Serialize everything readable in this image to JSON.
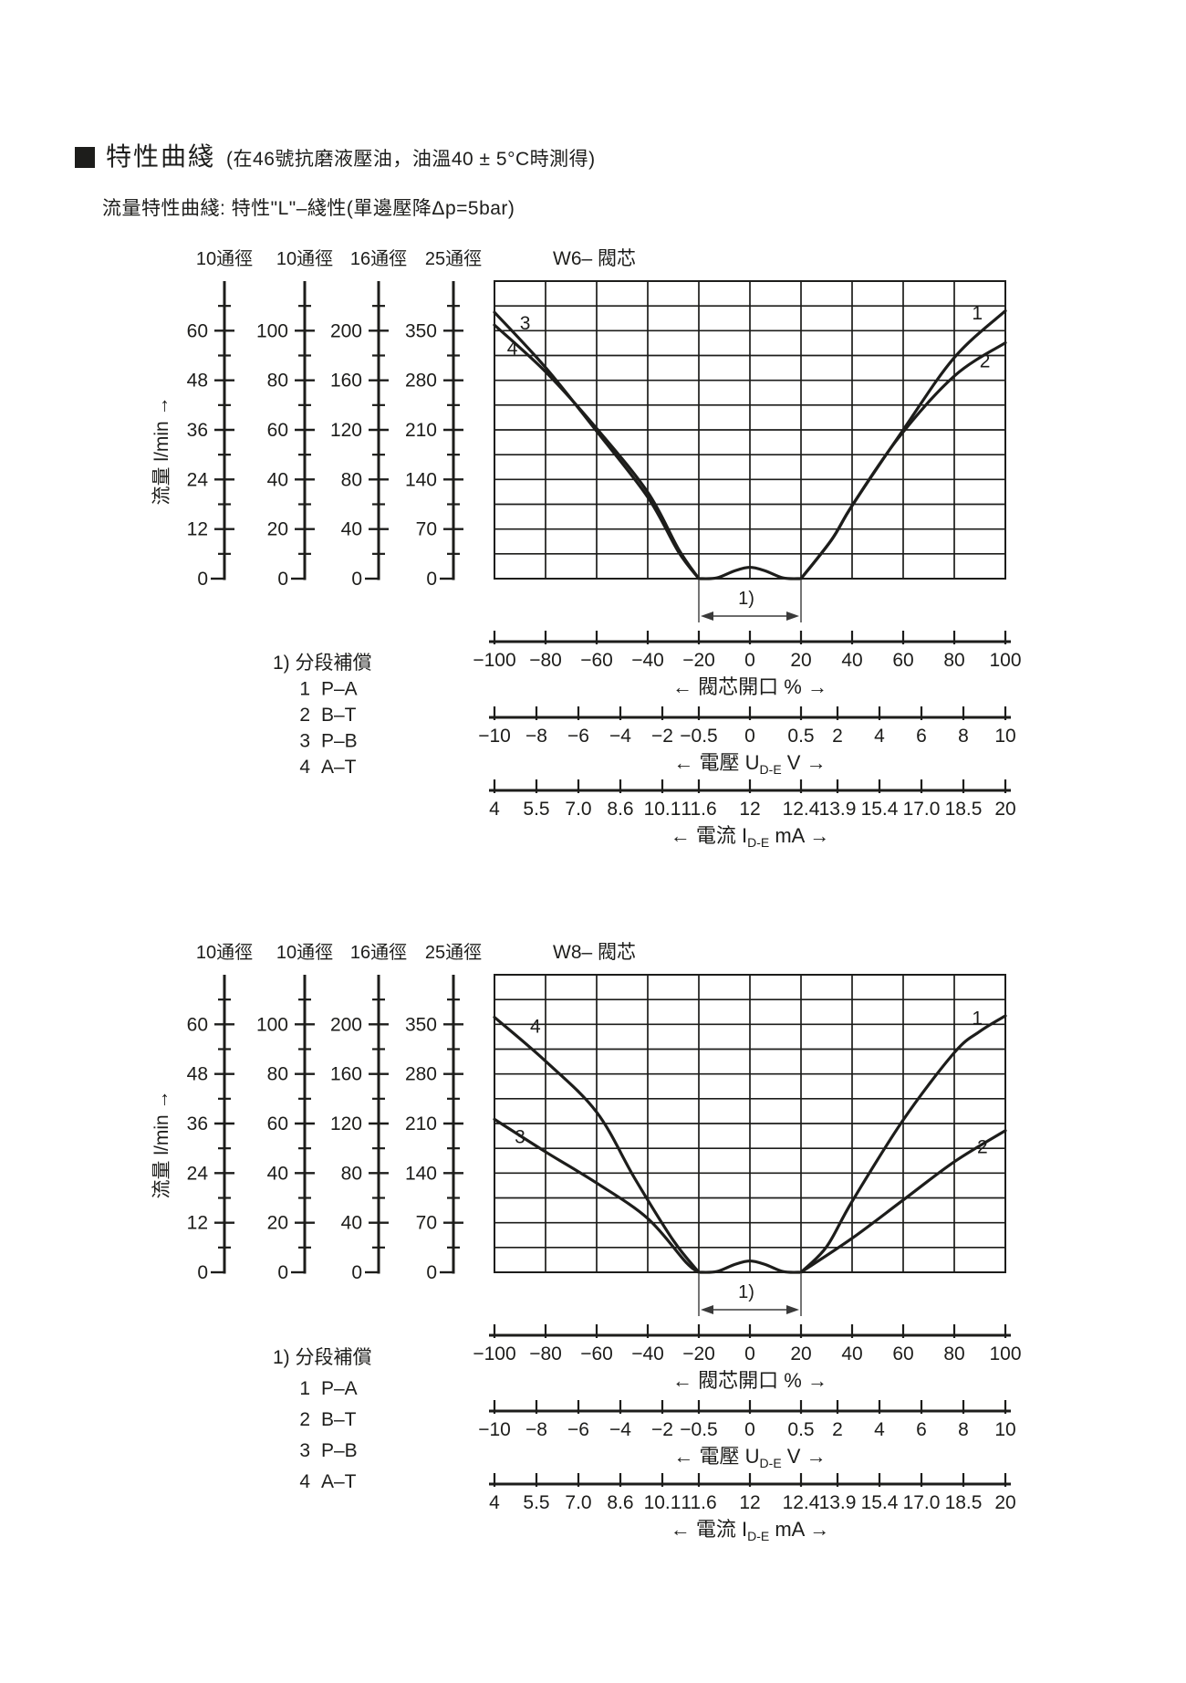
{
  "page": {
    "bg": "#ffffff",
    "ink": "#1d1d1b",
    "annotation_color": "#3a3a3a",
    "title_square_icon": "black-square",
    "title": "特性曲綫",
    "title_note": "(在46號抗磨液壓油，油溫40 ± 5°C時測得)",
    "subtitle": "流量特性曲綫: 特性\"L\"–綫性(單邊壓降Δp=5bar)"
  },
  "legend": {
    "heading": "1) 分段補償",
    "items": [
      {
        "num": "1",
        "label": "P–A"
      },
      {
        "num": "2",
        "label": "B–T"
      },
      {
        "num": "3",
        "label": "P–B"
      },
      {
        "num": "4",
        "label": "A–T"
      }
    ]
  },
  "flow_axis_label": "流量 l/min →",
  "deadband_label": "1)",
  "scales": [
    {
      "header": "10通徑",
      "ticks": [
        "0",
        "12",
        "24",
        "36",
        "48",
        "60"
      ]
    },
    {
      "header": "10通徑",
      "ticks": [
        "0",
        "20",
        "40",
        "60",
        "80",
        "100"
      ]
    },
    {
      "header": "16通徑",
      "ticks": [
        "0",
        "40",
        "80",
        "120",
        "160",
        "200"
      ]
    },
    {
      "header": "25通徑",
      "ticks": [
        "0",
        "70",
        "140",
        "210",
        "280",
        "350"
      ]
    }
  ],
  "x_axes": [
    {
      "kind": "opening",
      "ticks": [
        "−100",
        "−80",
        "−60",
        "−40",
        "−20",
        "0",
        "20",
        "40",
        "60",
        "80",
        "100"
      ],
      "label_prefix": "← 閥芯開口 % →",
      "label_sub": "",
      "label_suffix": ""
    },
    {
      "kind": "voltage",
      "ticks": [
        "−10",
        "−8",
        "−6",
        "−4",
        "−2",
        "−0.5",
        "0",
        "0.5",
        "2",
        "4",
        "6",
        "8",
        "10"
      ],
      "label_prefix": "← 電壓 U",
      "label_sub": "D-E",
      "label_suffix": " V →"
    },
    {
      "kind": "current",
      "ticks": [
        "4",
        "5.5",
        "7.0",
        "8.6",
        "10.1",
        "11.6",
        "12",
        "12.4",
        "13.9",
        "15.4",
        "17.0",
        "18.5",
        "20"
      ],
      "label_prefix": "← 電流 I",
      "label_sub": "D-E",
      "label_suffix": " mA →"
    }
  ],
  "chart_data": [
    {
      "type": "line",
      "title": "W6– 閥芯",
      "xlabel": "閥芯開口 %",
      "ylabel": "流量 l/min",
      "xlim": [
        -100,
        100
      ],
      "ylim": [
        0,
        420
      ],
      "grid": true,
      "y_scale_note": "four parallel flow scales: 10通徑 0–60, 10通徑 0–100, 16通徑 0–200, 25通徑 0–350 l/min; plotted values read on the 25通徑 scale",
      "series": [
        {
          "id": "3",
          "name": "P–B",
          "points": [
            [
              -100,
              376
            ],
            [
              -80,
              298
            ],
            [
              -60,
              208
            ],
            [
              -40,
              115
            ],
            [
              -28,
              38
            ],
            [
              -20,
              0
            ]
          ],
          "label_pos": [
            -88,
            352
          ]
        },
        {
          "id": "4",
          "name": "A–T",
          "points": [
            [
              -100,
              358
            ],
            [
              -80,
              292
            ],
            [
              -60,
              212
            ],
            [
              -40,
              122
            ],
            [
              -28,
              42
            ],
            [
              -20,
              0
            ]
          ],
          "label_pos": [
            -93,
            316
          ]
        },
        {
          "id": "1",
          "name": "P–A",
          "points": [
            [
              20,
              0
            ],
            [
              32,
              55
            ],
            [
              40,
              103
            ],
            [
              60,
              210
            ],
            [
              80,
              312
            ],
            [
              100,
              378
            ]
          ],
          "label_pos": [
            89,
            366
          ]
        },
        {
          "id": "2",
          "name": "B–T",
          "points": [
            [
              20,
              0
            ],
            [
              32,
              55
            ],
            [
              40,
              103
            ],
            [
              58,
              198
            ],
            [
              80,
              286
            ],
            [
              100,
              333
            ]
          ],
          "label_pos": [
            92,
            298
          ]
        },
        {
          "id": "deadband-bump",
          "name": "overlap-compensation-bump",
          "points": [
            [
              -20,
              0
            ],
            [
              -13,
              1
            ],
            [
              -6,
              11
            ],
            [
              0,
              16
            ],
            [
              6,
              11
            ],
            [
              13,
              1
            ],
            [
              20,
              0
            ]
          ],
          "label_pos": null
        }
      ]
    },
    {
      "type": "line",
      "title": "W8– 閥芯",
      "xlabel": "閥芯開口 %",
      "ylabel": "流量 l/min",
      "xlim": [
        -100,
        100
      ],
      "ylim": [
        0,
        420
      ],
      "grid": true,
      "y_scale_note": "four parallel flow scales: 10通徑 0–60, 10通徑 0–100, 16通徑 0–200, 25通徑 0–350 l/min; plotted values read on the 25通徑 scale",
      "series": [
        {
          "id": "4",
          "name": "A–T",
          "points": [
            [
              -100,
              360
            ],
            [
              -80,
              298
            ],
            [
              -60,
              226
            ],
            [
              -45,
              132
            ],
            [
              -30,
              45
            ],
            [
              -20,
              0
            ]
          ],
          "label_pos": [
            -84,
            338
          ]
        },
        {
          "id": "3",
          "name": "P–B",
          "points": [
            [
              -100,
              216
            ],
            [
              -80,
              170
            ],
            [
              -60,
              126
            ],
            [
              -40,
              76
            ],
            [
              -25,
              14
            ],
            [
              -20,
              0
            ]
          ],
          "label_pos": [
            -90,
            182
          ]
        },
        {
          "id": "1",
          "name": "P–A",
          "points": [
            [
              20,
              0
            ],
            [
              30,
              36
            ],
            [
              40,
              100
            ],
            [
              60,
              215
            ],
            [
              80,
              310
            ],
            [
              90,
              340
            ],
            [
              100,
              362
            ]
          ],
          "label_pos": [
            89,
            350
          ]
        },
        {
          "id": "2",
          "name": "B–T",
          "points": [
            [
              20,
              0
            ],
            [
              40,
              48
            ],
            [
              60,
              102
            ],
            [
              80,
              156
            ],
            [
              100,
              200
            ]
          ],
          "label_pos": [
            91,
            168
          ]
        },
        {
          "id": "deadband-bump",
          "name": "overlap-compensation-bump",
          "points": [
            [
              -20,
              0
            ],
            [
              -13,
              1
            ],
            [
              -6,
              11
            ],
            [
              0,
              16
            ],
            [
              6,
              11
            ],
            [
              13,
              1
            ],
            [
              20,
              0
            ]
          ],
          "label_pos": null
        }
      ]
    }
  ]
}
